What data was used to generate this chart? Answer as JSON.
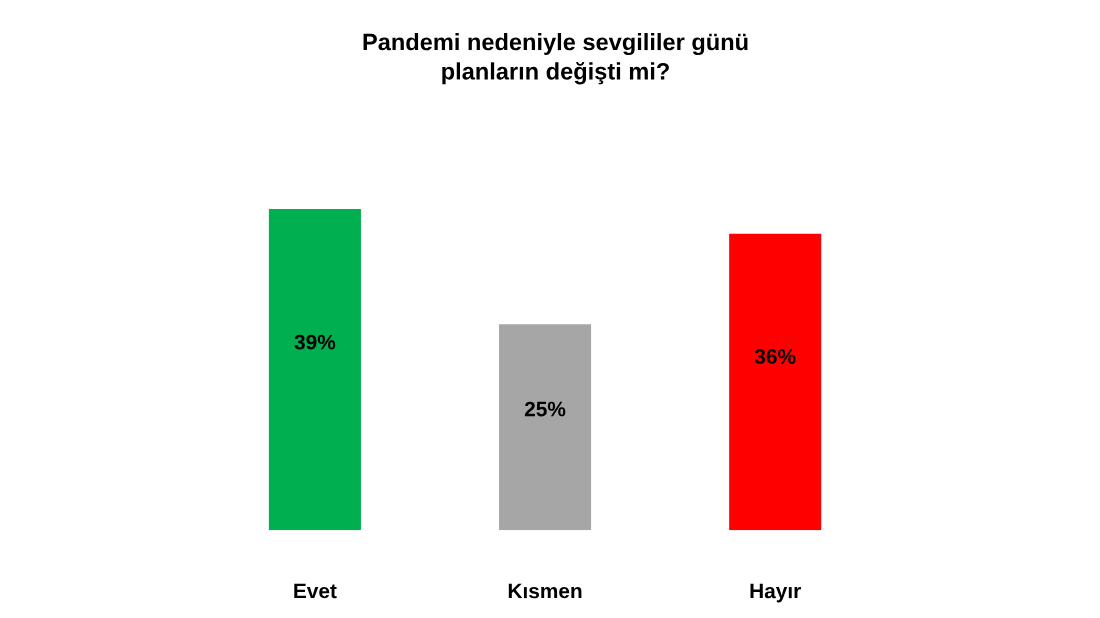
{
  "chart_data": {
    "type": "bar",
    "title": "Pandemi nedeniyle sevgililer günü\nplanların değişti mi?",
    "categories": [
      "Evet",
      "Kısmen",
      "Hayır"
    ],
    "values": [
      39,
      25,
      36
    ],
    "colors": [
      "#00b050",
      "#a6a6a6",
      "#ff0000"
    ],
    "value_labels": [
      "39%",
      "25%",
      "36%"
    ]
  }
}
